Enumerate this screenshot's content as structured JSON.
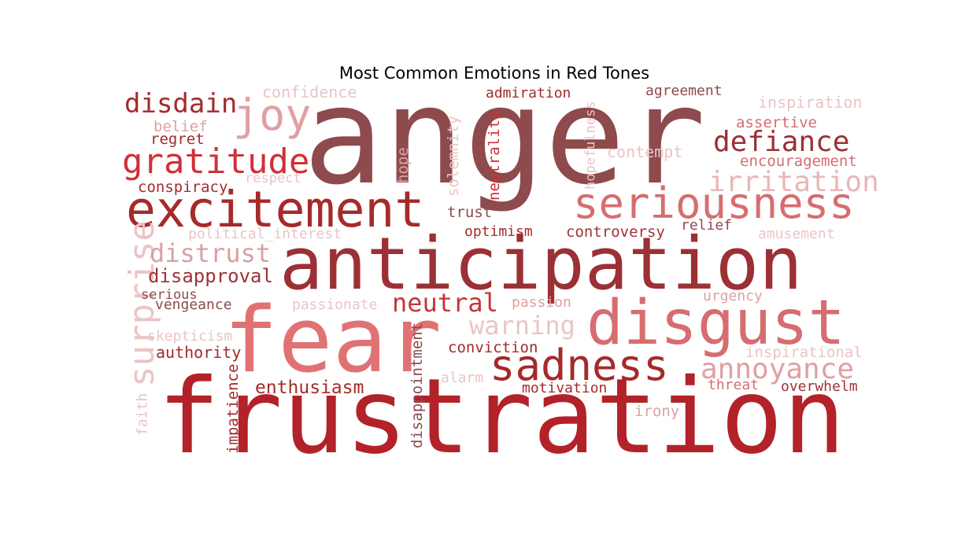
{
  "title": "Most Common Emotions in Red Tones",
  "palette": {
    "darkest": "#8E4A4D",
    "dark": "#A03238",
    "red": "#B22228",
    "brick": "#A52A2A",
    "rose": "#D66D70",
    "salmon": "#E07274",
    "pink": "#E0A0A2",
    "pale": "#EBC4C5"
  },
  "words": [
    {
      "text": "anger",
      "color": "#8E4A4D",
      "rotated": false
    },
    {
      "text": "frustration",
      "color": "#B22228",
      "rotated": false
    },
    {
      "text": "anticipation",
      "color": "#9B3035",
      "rotated": false
    },
    {
      "text": "fear",
      "color": "#E07274",
      "rotated": false
    },
    {
      "text": "disgust",
      "color": "#D66D70",
      "rotated": false
    },
    {
      "text": "excitement",
      "color": "#A52A2A",
      "rotated": false
    },
    {
      "text": "seriousness",
      "color": "#D66D70",
      "rotated": false
    },
    {
      "text": "sadness",
      "color": "#A52A2A",
      "rotated": false
    },
    {
      "text": "gratitude",
      "color": "#CF3136",
      "rotated": false
    },
    {
      "text": "joy",
      "color": "#E0A0A2",
      "rotated": false
    },
    {
      "text": "disdain",
      "color": "#A52A2A",
      "rotated": false
    },
    {
      "text": "defiance",
      "color": "#9B3035",
      "rotated": false
    },
    {
      "text": "irritation",
      "color": "#E7B7B8",
      "rotated": false
    },
    {
      "text": "annoyance",
      "color": "#E0A0A2",
      "rotated": false
    },
    {
      "text": "surprise",
      "color": "#EBC4C5",
      "rotated": true
    },
    {
      "text": "distrust",
      "color": "#D8A0A2",
      "rotated": false
    },
    {
      "text": "neutral",
      "color": "#C4353A",
      "rotated": false
    },
    {
      "text": "warning",
      "color": "#EBC4C5",
      "rotated": false
    },
    {
      "text": "disapproval",
      "color": "#A03238",
      "rotated": false
    },
    {
      "text": "enthusiasm",
      "color": "#A52A2A",
      "rotated": false
    },
    {
      "text": "confidence",
      "color": "#EBC4C5",
      "rotated": false
    },
    {
      "text": "admiration",
      "color": "#A52A2A",
      "rotated": false
    },
    {
      "text": "agreement",
      "color": "#8E4A4D",
      "rotated": false
    },
    {
      "text": "inspiration",
      "color": "#EBC4C5",
      "rotated": false
    },
    {
      "text": "assertive",
      "color": "#D66D70",
      "rotated": false
    },
    {
      "text": "encouragement",
      "color": "#D66D70",
      "rotated": false
    },
    {
      "text": "contempt",
      "color": "#EBC4C5",
      "rotated": false
    },
    {
      "text": "belief",
      "color": "#E0A0A2",
      "rotated": false
    },
    {
      "text": "regret",
      "color": "#A52A2A",
      "rotated": false
    },
    {
      "text": "respect",
      "color": "#EBC4C5",
      "rotated": false
    },
    {
      "text": "conspiracy",
      "color": "#A52A2A",
      "rotated": false
    },
    {
      "text": "political_interest",
      "color": "#EBC4C5",
      "rotated": false
    },
    {
      "text": "trust",
      "color": "#8E4A4D",
      "rotated": false
    },
    {
      "text": "optimism",
      "color": "#A52A2A",
      "rotated": false
    },
    {
      "text": "controversy",
      "color": "#A03238",
      "rotated": false
    },
    {
      "text": "relief",
      "color": "#8E4A4D",
      "rotated": false
    },
    {
      "text": "amusement",
      "color": "#EBC4C5",
      "rotated": false
    },
    {
      "text": "serious",
      "color": "#8E4A4D",
      "rotated": false
    },
    {
      "text": "vengeance",
      "color": "#8E4A4D",
      "rotated": false
    },
    {
      "text": "passionate",
      "color": "#EBC4C5",
      "rotated": false
    },
    {
      "text": "passion",
      "color": "#E0A0A2",
      "rotated": false
    },
    {
      "text": "urgency",
      "color": "#E0A0A2",
      "rotated": false
    },
    {
      "text": "skepticism",
      "color": "#EBC4C5",
      "rotated": false
    },
    {
      "text": "authority",
      "color": "#A52A2A",
      "rotated": false
    },
    {
      "text": "conviction",
      "color": "#A52A2A",
      "rotated": false
    },
    {
      "text": "inspirational",
      "color": "#EBC4C5",
      "rotated": false
    },
    {
      "text": "alarm",
      "color": "#EBC4C5",
      "rotated": false
    },
    {
      "text": "motivation",
      "color": "#A52A2A",
      "rotated": false
    },
    {
      "text": "threat",
      "color": "#D66D70",
      "rotated": false
    },
    {
      "text": "overwhelm",
      "color": "#A03238",
      "rotated": false
    },
    {
      "text": "irony",
      "color": "#E0A0A2",
      "rotated": false
    },
    {
      "text": "hope",
      "color": "#E0A0A2",
      "rotated": true
    },
    {
      "text": "solemnity",
      "color": "#EBC4C5",
      "rotated": true
    },
    {
      "text": "neutrality",
      "color": "#CF3136",
      "rotated": true
    },
    {
      "text": "hopefulness",
      "color": "#EBC4C5",
      "rotated": true
    },
    {
      "text": "disappointment",
      "color": "#8E4A4D",
      "rotated": true
    },
    {
      "text": "impatience",
      "color": "#A52A2A",
      "rotated": true
    },
    {
      "text": "faith",
      "color": "#EBC4C5",
      "rotated": true
    }
  ]
}
